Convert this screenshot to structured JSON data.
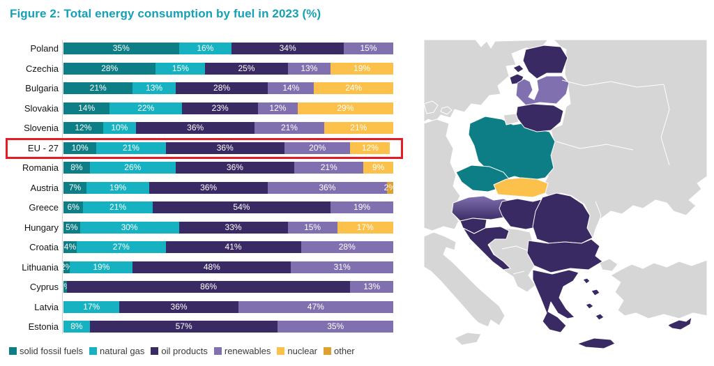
{
  "title": "Figure 2: Total energy consumption by fuel in 2023 (%)",
  "colors": {
    "solid_fossil_fuels": "#0d7e86",
    "natural_gas": "#16b2c1",
    "oil_products": "#3a2a64",
    "renewables": "#8070af",
    "nuclear": "#fbc14b",
    "other": "#dfa02e",
    "title_teal": "#14a0b5",
    "highlight_red": "#e51c23",
    "map_land": "#d6d6d6",
    "map_sea": "#ffffff"
  },
  "legend": [
    {
      "key": "solid_fossil_fuels",
      "label": "solid fossil fuels"
    },
    {
      "key": "natural_gas",
      "label": "natural gas"
    },
    {
      "key": "oil_products",
      "label": "oil products"
    },
    {
      "key": "renewables",
      "label": "renewables"
    },
    {
      "key": "nuclear",
      "label": "nuclear"
    },
    {
      "key": "other",
      "label": "other"
    }
  ],
  "chart_data": {
    "type": "bar",
    "orientation": "horizontal",
    "stacked": true,
    "unit": "%",
    "title": "Total energy consumption by fuel in 2023 (%)",
    "xlim": [
      0,
      100
    ],
    "grid": false,
    "legend_position": "bottom",
    "highlighted_category": "EU - 27",
    "categories": [
      "Poland",
      "Czechia",
      "Bulgaria",
      "Slovakia",
      "Slovenia",
      "EU - 27",
      "Romania",
      "Austria",
      "Greece",
      "Hungary",
      "Croatia",
      "Lithuania",
      "Cyprus",
      "Latvia",
      "Estonia"
    ],
    "series_keys": [
      "solid_fossil_fuels",
      "natural_gas",
      "oil_products",
      "renewables",
      "nuclear",
      "other"
    ],
    "rows": [
      {
        "label": "Poland",
        "segments": [
          {
            "key": "solid_fossil_fuels",
            "pct": 35
          },
          {
            "key": "natural_gas",
            "pct": 16
          },
          {
            "key": "oil_products",
            "pct": 34
          },
          {
            "key": "renewables",
            "pct": 15
          }
        ]
      },
      {
        "label": "Czechia",
        "segments": [
          {
            "key": "solid_fossil_fuels",
            "pct": 28
          },
          {
            "key": "natural_gas",
            "pct": 15
          },
          {
            "key": "oil_products",
            "pct": 25
          },
          {
            "key": "renewables",
            "pct": 13
          },
          {
            "key": "nuclear",
            "pct": 19
          }
        ]
      },
      {
        "label": "Bulgaria",
        "segments": [
          {
            "key": "solid_fossil_fuels",
            "pct": 21
          },
          {
            "key": "natural_gas",
            "pct": 13
          },
          {
            "key": "oil_products",
            "pct": 28
          },
          {
            "key": "renewables",
            "pct": 14
          },
          {
            "key": "nuclear",
            "pct": 24
          }
        ]
      },
      {
        "label": "Slovakia",
        "segments": [
          {
            "key": "solid_fossil_fuels",
            "pct": 14
          },
          {
            "key": "natural_gas",
            "pct": 22
          },
          {
            "key": "oil_products",
            "pct": 23
          },
          {
            "key": "renewables",
            "pct": 12
          },
          {
            "key": "nuclear",
            "pct": 29
          }
        ]
      },
      {
        "label": "Slovenia",
        "segments": [
          {
            "key": "solid_fossil_fuels",
            "pct": 12
          },
          {
            "key": "natural_gas",
            "pct": 10
          },
          {
            "key": "oil_products",
            "pct": 36
          },
          {
            "key": "renewables",
            "pct": 21
          },
          {
            "key": "nuclear",
            "pct": 21
          }
        ]
      },
      {
        "label": "EU - 27",
        "segments": [
          {
            "key": "solid_fossil_fuels",
            "pct": 10
          },
          {
            "key": "natural_gas",
            "pct": 21
          },
          {
            "key": "oil_products",
            "pct": 36
          },
          {
            "key": "renewables",
            "pct": 20
          },
          {
            "key": "nuclear",
            "pct": 12
          }
        ]
      },
      {
        "label": "Romania",
        "segments": [
          {
            "key": "solid_fossil_fuels",
            "pct": 8
          },
          {
            "key": "natural_gas",
            "pct": 26
          },
          {
            "key": "oil_products",
            "pct": 36
          },
          {
            "key": "renewables",
            "pct": 21
          },
          {
            "key": "nuclear",
            "pct": 9
          }
        ]
      },
      {
        "label": "Austria",
        "segments": [
          {
            "key": "solid_fossil_fuels",
            "pct": 7
          },
          {
            "key": "natural_gas",
            "pct": 19
          },
          {
            "key": "oil_products",
            "pct": 36
          },
          {
            "key": "renewables",
            "pct": 36
          },
          {
            "key": "other",
            "pct": 2
          }
        ]
      },
      {
        "label": "Greece",
        "segments": [
          {
            "key": "solid_fossil_fuels",
            "pct": 6
          },
          {
            "key": "natural_gas",
            "pct": 21
          },
          {
            "key": "oil_products",
            "pct": 54
          },
          {
            "key": "renewables",
            "pct": 19
          }
        ]
      },
      {
        "label": "Hungary",
        "segments": [
          {
            "key": "solid_fossil_fuels",
            "pct": 5
          },
          {
            "key": "natural_gas",
            "pct": 30
          },
          {
            "key": "oil_products",
            "pct": 33
          },
          {
            "key": "renewables",
            "pct": 15
          },
          {
            "key": "nuclear",
            "pct": 17
          }
        ]
      },
      {
        "label": "Croatia",
        "segments": [
          {
            "key": "solid_fossil_fuels",
            "pct": 4
          },
          {
            "key": "natural_gas",
            "pct": 27
          },
          {
            "key": "oil_products",
            "pct": 41
          },
          {
            "key": "renewables",
            "pct": 28
          }
        ]
      },
      {
        "label": "Lithuania",
        "segments": [
          {
            "key": "solid_fossil_fuels",
            "pct": 2
          },
          {
            "key": "natural_gas",
            "pct": 19
          },
          {
            "key": "oil_products",
            "pct": 48
          },
          {
            "key": "renewables",
            "pct": 31
          }
        ]
      },
      {
        "label": "Cyprus",
        "segments": [
          {
            "key": "solid_fossil_fuels",
            "pct": 1
          },
          {
            "key": "oil_products",
            "pct": 86
          },
          {
            "key": "renewables",
            "pct": 13
          }
        ]
      },
      {
        "label": "Latvia",
        "segments": [
          {
            "key": "natural_gas",
            "pct": 17
          },
          {
            "key": "oil_products",
            "pct": 36
          },
          {
            "key": "renewables",
            "pct": 47
          }
        ]
      },
      {
        "label": "Estonia",
        "segments": [
          {
            "key": "natural_gas",
            "pct": 8
          },
          {
            "key": "oil_products",
            "pct": 57
          },
          {
            "key": "renewables",
            "pct": 35
          }
        ]
      }
    ]
  },
  "map": {
    "description": "Europe map, EU members of the chart shaded by dominant fuel",
    "countries": [
      {
        "name": "Poland",
        "fill": "solid_fossil_fuels"
      },
      {
        "name": "Czechia",
        "fill": "solid_fossil_fuels"
      },
      {
        "name": "Slovakia",
        "fill": "nuclear"
      },
      {
        "name": "Austria",
        "fill": "renewables + oil_products gradient"
      },
      {
        "name": "Estonia",
        "fill": "oil_products"
      },
      {
        "name": "Latvia",
        "fill": "renewables"
      },
      {
        "name": "Lithuania",
        "fill": "oil_products"
      },
      {
        "name": "Hungary",
        "fill": "oil_products"
      },
      {
        "name": "Slovenia",
        "fill": "oil_products"
      },
      {
        "name": "Croatia",
        "fill": "oil_products"
      },
      {
        "name": "Romania",
        "fill": "oil_products"
      },
      {
        "name": "Bulgaria",
        "fill": "oil_products"
      },
      {
        "name": "Greece",
        "fill": "oil_products"
      },
      {
        "name": "Cyprus",
        "fill": "oil_products"
      }
    ]
  }
}
